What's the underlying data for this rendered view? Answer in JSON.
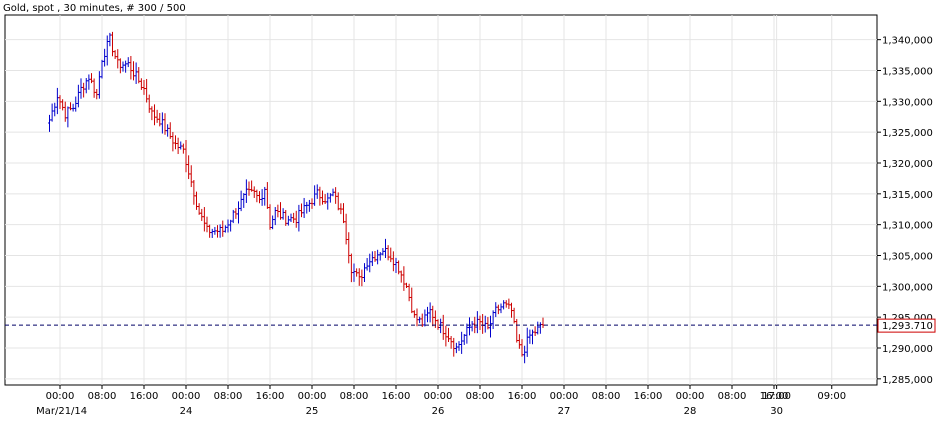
{
  "chart_data": {
    "type": "candlestick",
    "title": "Gold, spot , 30 minutes, # 300 / 500",
    "xlabel": "",
    "ylabel": "",
    "ylim": [
      1284,
      1344
    ],
    "y_ticks": [
      1285,
      1290,
      1295,
      1300,
      1305,
      1310,
      1315,
      1320,
      1325,
      1330,
      1335,
      1340
    ],
    "y_tick_labels": [
      "1,285,000",
      "1,290,000",
      "1,295,000",
      "1,300,000",
      "1,305,000",
      "1,310,000",
      "1,315,000",
      "1,320,000",
      "1,325,000",
      "1,330,000",
      "1,335,000",
      "1,340,000"
    ],
    "x_time_labels": [
      "00:00",
      "08:00",
      "16:00",
      "00:00",
      "08:00",
      "16:00",
      "00:00",
      "08:00",
      "16:00",
      "00:00",
      "08:00",
      "16:00",
      "00:00",
      "08:00",
      "16:00",
      "00:00",
      "08:00",
      "16:00",
      "17:00",
      "09:00"
    ],
    "x_time_positions": [
      4,
      20,
      36,
      52,
      68,
      84,
      100,
      116,
      132,
      148,
      164,
      180,
      196,
      212,
      228,
      244,
      260,
      276,
      277,
      298
    ],
    "x_date_labels": [
      "Mar/21/14",
      "24",
      "25",
      "26",
      "27",
      "28",
      "30"
    ],
    "x_date_positions": [
      -3,
      52,
      100,
      148,
      196,
      244,
      277
    ],
    "last_price": 1293.71,
    "last_price_label": "1,293.710",
    "grid": true,
    "colors": {
      "up": "#0000cc",
      "down": "#cc0000",
      "grid": "#e4e4e4",
      "last_line": "#000066",
      "last_label_border": "#cc0000"
    },
    "anchor_closes": [
      [
        0,
        1327
      ],
      [
        3,
        1331
      ],
      [
        6,
        1328
      ],
      [
        9,
        1329
      ],
      [
        12,
        1332
      ],
      [
        15,
        1334
      ],
      [
        18,
        1331
      ],
      [
        20,
        1337
      ],
      [
        23,
        1340
      ],
      [
        26,
        1336
      ],
      [
        30,
        1336
      ],
      [
        33,
        1334
      ],
      [
        36,
        1332
      ],
      [
        39,
        1328
      ],
      [
        42,
        1327
      ],
      [
        45,
        1325
      ],
      [
        48,
        1323
      ],
      [
        51,
        1322
      ],
      [
        54,
        1317
      ],
      [
        57,
        1312
      ],
      [
        60,
        1309
      ],
      [
        63,
        1309
      ],
      [
        66,
        1309
      ],
      [
        69,
        1311
      ],
      [
        72,
        1313
      ],
      [
        75,
        1315
      ],
      [
        78,
        1315
      ],
      [
        80,
        1314
      ],
      [
        82,
        1316
      ],
      [
        84,
        1310
      ],
      [
        86,
        1312
      ],
      [
        90,
        1311
      ],
      [
        94,
        1311
      ],
      [
        98,
        1313
      ],
      [
        102,
        1315
      ],
      [
        106,
        1314
      ],
      [
        108,
        1315
      ],
      [
        112,
        1311
      ],
      [
        115,
        1303
      ],
      [
        118,
        1301
      ],
      [
        121,
        1304
      ],
      [
        124,
        1305
      ],
      [
        127,
        1306
      ],
      [
        130,
        1305
      ],
      [
        133,
        1303
      ],
      [
        136,
        1300
      ],
      [
        139,
        1295
      ],
      [
        142,
        1294
      ],
      [
        145,
        1296
      ],
      [
        148,
        1294
      ],
      [
        152,
        1292
      ],
      [
        155,
        1290
      ],
      [
        158,
        1292
      ],
      [
        161,
        1294
      ],
      [
        164,
        1294
      ],
      [
        167,
        1293
      ],
      [
        170,
        1296
      ],
      [
        173,
        1297
      ],
      [
        176,
        1296
      ],
      [
        178,
        1291
      ],
      [
        180,
        1289
      ],
      [
        183,
        1292
      ],
      [
        186,
        1293
      ],
      [
        188,
        1293.71
      ]
    ]
  }
}
